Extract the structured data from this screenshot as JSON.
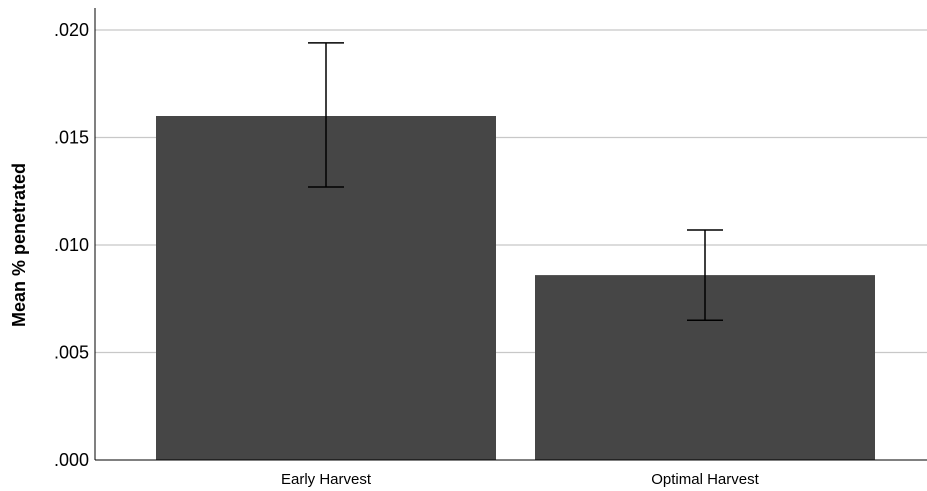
{
  "chart_data": {
    "type": "bar",
    "title": "",
    "xlabel": "",
    "ylabel": "Mean % penetrated",
    "categories": [
      "Early Harvest",
      "Optimal Harvest"
    ],
    "values": [
      0.016,
      0.0086
    ],
    "error_low": [
      0.0127,
      0.0065
    ],
    "error_high": [
      0.0194,
      0.0107
    ],
    "ylim": [
      0,
      0.02
    ],
    "yticks": [
      0.0,
      0.005,
      0.01,
      0.015,
      0.02
    ],
    "ytick_labels": [
      ".000",
      ".005",
      ".010",
      ".015",
      ".020"
    ],
    "grid": true,
    "legend": "none",
    "colors": {
      "bar": "#464646",
      "grid": "#c8c8c8",
      "axis": "#000000",
      "error_bar": "#000000"
    }
  }
}
